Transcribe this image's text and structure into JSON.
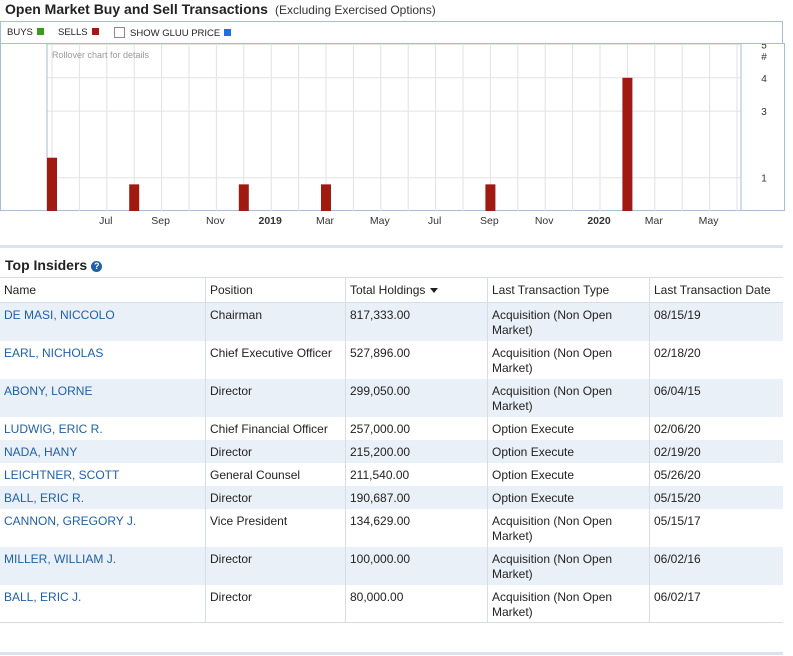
{
  "header": {
    "title": "Open Market Buy and Sell Transactions",
    "subtitle": "(Excluding Exercised Options)"
  },
  "legend": {
    "buys_label": "BUYS",
    "sells_label": "SELLS",
    "show_price_label": "SHOW GLUU PRICE",
    "colors": {
      "buys": "#3a9a1e",
      "sells": "#a01a12",
      "price": "#1f6fe0"
    }
  },
  "chart_data": {
    "type": "bar",
    "note_text": "Rollover chart for details",
    "y_axis_title": "#",
    "yticks": [
      1,
      3,
      4,
      5
    ],
    "ylim": [
      0,
      5.4
    ],
    "x_tick_labels": [
      {
        "label": "Jul",
        "year": false
      },
      {
        "label": "Sep",
        "year": false
      },
      {
        "label": "Nov",
        "year": false
      },
      {
        "label": "2019",
        "year": true
      },
      {
        "label": "Mar",
        "year": false
      },
      {
        "label": "May",
        "year": false
      },
      {
        "label": "Jul",
        "year": false
      },
      {
        "label": "Sep",
        "year": false
      },
      {
        "label": "Nov",
        "year": false
      },
      {
        "label": "2020",
        "year": true
      },
      {
        "label": "Mar",
        "year": false
      },
      {
        "label": "May",
        "year": false
      }
    ],
    "series": [
      {
        "name": "SELLS",
        "color": "#a01a12",
        "points": [
          {
            "month": "2018-05",
            "value": 1.6
          },
          {
            "month": "2018-08",
            "value": 0.8
          },
          {
            "month": "2018-12",
            "value": 0.8
          },
          {
            "month": "2019-03",
            "value": 0.8
          },
          {
            "month": "2019-09",
            "value": 0.8
          },
          {
            "month": "2020-02",
            "value": 4.0
          }
        ]
      }
    ]
  },
  "insiders": {
    "title": "Top Insiders",
    "columns": [
      "Name",
      "Position",
      "Total Holdings",
      "Last Transaction Type",
      "Last Transaction Date"
    ],
    "rows": [
      {
        "name": "DE MASI, NICCOLO",
        "position": "Chairman",
        "holdings": "817,333.00",
        "type": "Acquisition (Non Open Market)",
        "date": "08/15/19"
      },
      {
        "name": "EARL, NICHOLAS",
        "position": "Chief Executive Officer",
        "holdings": "527,896.00",
        "type": "Acquisition (Non Open Market)",
        "date": "02/18/20"
      },
      {
        "name": "ABONY, LORNE",
        "position": "Director",
        "holdings": "299,050.00",
        "type": "Acquisition (Non Open Market)",
        "date": "06/04/15"
      },
      {
        "name": "LUDWIG, ERIC R.",
        "position": "Chief Financial Officer",
        "holdings": "257,000.00",
        "type": "Option Execute",
        "date": "02/06/20"
      },
      {
        "name": "NADA, HANY",
        "position": "Director",
        "holdings": "215,200.00",
        "type": "Option Execute",
        "date": "02/19/20"
      },
      {
        "name": "LEICHTNER, SCOTT",
        "position": "General Counsel",
        "holdings": "211,540.00",
        "type": "Option Execute",
        "date": "05/26/20"
      },
      {
        "name": "BALL, ERIC R.",
        "position": "Director",
        "holdings": "190,687.00",
        "type": "Option Execute",
        "date": "05/15/20"
      },
      {
        "name": "CANNON, GREGORY J.",
        "position": "Vice President",
        "holdings": "134,629.00",
        "type": "Acquisition (Non Open Market)",
        "date": "05/15/17"
      },
      {
        "name": "MILLER, WILLIAM J.",
        "position": "Director",
        "holdings": "100,000.00",
        "type": "Acquisition (Non Open Market)",
        "date": "06/02/16"
      },
      {
        "name": "BALL, ERIC J.",
        "position": "Director",
        "holdings": "80,000.00",
        "type": "Acquisition (Non Open Market)",
        "date": "06/02/17"
      }
    ]
  }
}
